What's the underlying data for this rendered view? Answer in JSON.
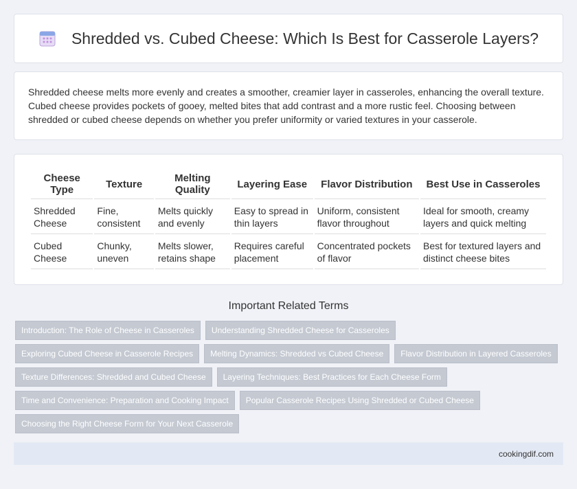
{
  "header": {
    "title": "Shredded vs. Cubed Cheese: Which Is Best for Casserole Layers?"
  },
  "intro": "Shredded cheese melts more evenly and creates a smoother, creamier layer in casseroles, enhancing the overall texture. Cubed cheese provides pockets of gooey, melted bites that add contrast and a more rustic feel. Choosing between shredded or cubed cheese depends on whether you prefer uniformity or varied textures in your casserole.",
  "table": {
    "columns": [
      "Cheese Type",
      "Texture",
      "Melting Quality",
      "Layering Ease",
      "Flavor Distribution",
      "Best Use in Casseroles"
    ],
    "rows": [
      [
        "Shredded Cheese",
        "Fine, consistent",
        "Melts quickly and evenly",
        "Easy to spread in thin layers",
        "Uniform, consistent flavor throughout",
        "Ideal for smooth, creamy layers and quick melting"
      ],
      [
        "Cubed Cheese",
        "Chunky, uneven",
        "Melts slower, retains shape",
        "Requires careful placement",
        "Concentrated pockets of flavor",
        "Best for textured layers and distinct cheese bites"
      ]
    ]
  },
  "related": {
    "title": "Important Related Terms",
    "tags": [
      "Introduction: The Role of Cheese in Casseroles",
      "Understanding Shredded Cheese for Casseroles",
      "Exploring Cubed Cheese in Casserole Recipes",
      "Melting Dynamics: Shredded vs Cubed Cheese",
      "Flavor Distribution in Layered Casseroles",
      "Texture Differences: Shredded and Cubed Cheese",
      "Layering Techniques: Best Practices for Each Cheese Form",
      "Time and Convenience: Preparation and Cooking Impact",
      "Popular Casserole Recipes Using Shredded or Cubed Cheese",
      "Choosing the Right Cheese Form for Your Next Casserole"
    ]
  },
  "footer": {
    "site": "cookingdif.com"
  }
}
